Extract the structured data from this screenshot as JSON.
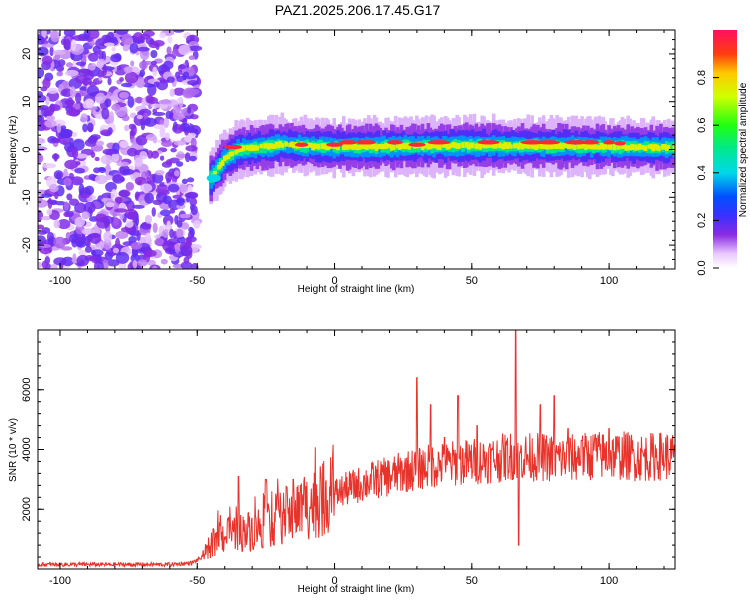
{
  "title": "PAZ1.2025.206.17.45.G17",
  "chart_data": [
    {
      "type": "heatmap",
      "xlabel": "Height of straight line (km)",
      "ylabel": "Frequency (Hz)",
      "xlim": [
        -108,
        124
      ],
      "ylim": [
        -25,
        25
      ],
      "xticks": [
        -100,
        -50,
        0,
        50,
        100
      ],
      "yticks": [
        -20,
        -10,
        0,
        10,
        20
      ],
      "colorbar": {
        "label": "Normalized spectral amplitude",
        "range": [
          0.0,
          1.0
        ],
        "ticks": [
          0.0,
          0.2,
          0.4,
          0.6,
          0.8
        ]
      },
      "regions": [
        {
          "description": "noise",
          "x_range": [
            -108,
            -50
          ],
          "y_range": [
            -25,
            25
          ],
          "amplitude": 0.1
        },
        {
          "description": "signal ridge",
          "x_range": [
            -45,
            124
          ],
          "frequency_at": [
            [
              -45,
              -6
            ],
            [
              -40,
              -2
            ],
            [
              -35,
              0
            ],
            [
              -20,
              1
            ],
            [
              0,
              0.5
            ],
            [
              50,
              0.8
            ],
            [
              100,
              0.6
            ],
            [
              124,
              0.4
            ]
          ],
          "peak_amplitude": 1.0
        }
      ]
    },
    {
      "type": "line",
      "xlabel": "Height of straight line (km)",
      "ylabel": "SNR (10 * v/v)",
      "xlim": [
        -108,
        124
      ],
      "ylim": [
        0,
        8000
      ],
      "xticks": [
        -100,
        -50,
        0,
        50,
        100
      ],
      "yticks": [
        2000,
        4000,
        6000
      ],
      "series": [
        {
          "color": "#e8332a",
          "x": [
            -108,
            -100,
            -90,
            -80,
            -70,
            -60,
            -52,
            -48,
            -45,
            -42,
            -40,
            -35,
            -30,
            -25,
            -20,
            -15,
            -10,
            -5,
            0,
            5,
            10,
            15,
            20,
            25,
            30,
            35,
            40,
            45,
            50,
            55,
            60,
            65,
            70,
            75,
            80,
            85,
            90,
            95,
            100,
            105,
            110,
            115,
            120,
            124
          ],
          "y": [
            150,
            150,
            150,
            150,
            150,
            150,
            200,
            400,
            800,
            1100,
            1100,
            1200,
            1300,
            1500,
            1700,
            1900,
            2100,
            2300,
            2500,
            2700,
            2850,
            3000,
            3100,
            3250,
            3350,
            3450,
            3500,
            3550,
            3600,
            3650,
            3700,
            3800,
            3750,
            3750,
            3700,
            3700,
            3750,
            3800,
            3800,
            3800,
            3750,
            3750,
            3800,
            3750
          ],
          "spikes": [
            [
              -35,
              3100
            ],
            [
              -25,
              3000
            ],
            [
              -15,
              3000
            ],
            [
              30,
              6400
            ],
            [
              35,
              5500
            ],
            [
              40,
              4400
            ],
            [
              45,
              5800
            ],
            [
              52,
              4800
            ],
            [
              66,
              8000
            ],
            [
              67,
              800
            ],
            [
              75,
              5500
            ],
            [
              80,
              5800
            ],
            [
              85,
              4700
            ],
            [
              90,
              4300
            ],
            [
              95,
              4500
            ],
            [
              100,
              4700
            ]
          ]
        }
      ]
    }
  ]
}
